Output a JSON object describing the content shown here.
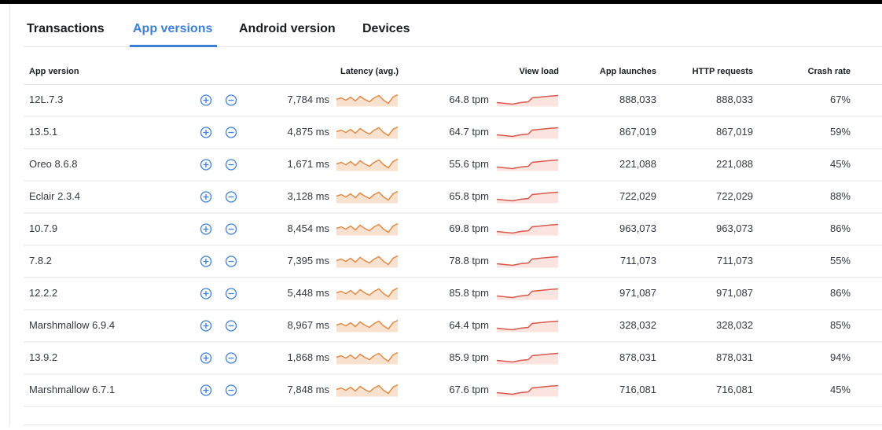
{
  "tabs": [
    "Transactions",
    "App versions",
    "Android version",
    "Devices"
  ],
  "table": {
    "headers": [
      "App version",
      "Latency (avg.)",
      "View load",
      "App launches",
      "HTTP requests",
      "Crash rate"
    ],
    "rows": [
      [
        "12L.7.3",
        "7,784 ms",
        "64.8 tpm",
        "888,033",
        "888,033",
        "67%"
      ],
      [
        "13.5.1",
        "4,875 ms",
        "64.7 tpm",
        "867,019",
        "867,019",
        "59%"
      ],
      [
        "Oreo 8.6.8",
        "1,671 ms",
        "55.6 tpm",
        "221,088",
        "221,088",
        "45%"
      ],
      [
        "Eclair 2.3.4",
        "3,128 ms",
        "65.8 tpm",
        "722,029",
        "722,029",
        "88%"
      ],
      [
        "10.7.9",
        "8,454 ms",
        "69.8 tpm",
        "963,073",
        "963,073",
        "86%"
      ],
      [
        "7.8.2",
        "7,395 ms",
        "78.8 tpm",
        "711,073",
        "711,073",
        "55%"
      ],
      [
        "12.2.2",
        "5,448 ms",
        "85.8 tpm",
        "971,087",
        "971,087",
        "86%"
      ],
      [
        "Marshmallow 6.9.4",
        "8,967 ms",
        "64.4 tpm",
        "328,032",
        "328,032",
        "85%"
      ],
      [
        "13.9.2",
        "1,868 ms",
        "85.9 tpm",
        "878,031",
        "878,031",
        "94%"
      ],
      [
        "Marshmallow 6.7.1",
        "7,848 ms",
        "67.6 tpm",
        "716,081",
        "716,081",
        "45%"
      ]
    ]
  }
}
